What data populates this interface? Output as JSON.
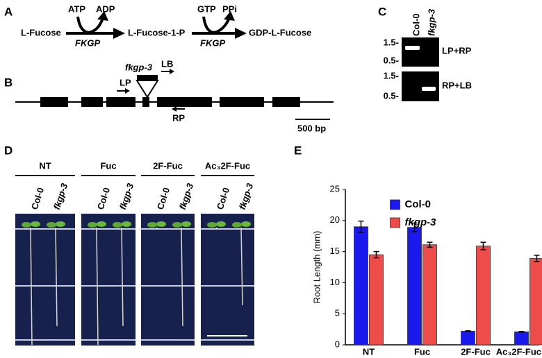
{
  "panel_a": {
    "label": "A",
    "substrate": "L-Fucose",
    "intermediate": "L-Fucose-1-P",
    "product": "GDP-L-Fucose",
    "step1": {
      "input": "ATP",
      "output": "ADP",
      "enzyme": "FKGP"
    },
    "step2": {
      "input": "GTP",
      "output": "PPi",
      "enzyme": "FKGP"
    }
  },
  "panel_b": {
    "label": "B",
    "allele": "fkgp-3",
    "primers": [
      "LB",
      "LP",
      "RP"
    ],
    "scale_bar": "500 bp"
  },
  "panel_c": {
    "label": "C",
    "lanes": [
      "Col-0",
      "fkgp-3"
    ],
    "gels": [
      {
        "markers": [
          "1.5-",
          "0.5-"
        ],
        "primers": "LP+RP"
      },
      {
        "markers": [
          "1.5-",
          "0.5-"
        ],
        "primers": "RP+LB"
      }
    ]
  },
  "panel_d": {
    "label": "D",
    "treatments": [
      {
        "name": "NT",
        "genotypes": [
          "Col-0",
          "fkgp-3"
        ]
      },
      {
        "name": "Fuc",
        "genotypes": [
          "Col-0",
          "fkgp-3"
        ]
      },
      {
        "name": "2F-Fuc",
        "genotypes": [
          "Col-0",
          "fkgp-3"
        ]
      },
      {
        "name": "Ac₃2F-Fuc",
        "genotypes": [
          "Col-0",
          "fkgp-3"
        ]
      }
    ]
  },
  "panel_e_label": "E",
  "chart_data": {
    "type": "bar",
    "ylabel": "Root Length (mm)",
    "categories": [
      "NT",
      "Fuc",
      "2F-Fuc",
      "Ac₃2F-Fuc"
    ],
    "series": [
      {
        "name": "Col-0",
        "color": "#1a1aee",
        "values": [
          19,
          18.9,
          2.2,
          2.1
        ],
        "errors": [
          0.9,
          0.7,
          0.05,
          0.05
        ]
      },
      {
        "name": "fkgp-3",
        "color": "#ee4b4b",
        "values": [
          14.5,
          16.1,
          15.9,
          13.9
        ],
        "errors": [
          0.5,
          0.4,
          0.6,
          0.5
        ]
      }
    ],
    "ylim": [
      0,
      25
    ],
    "yticks": [
      0,
      5,
      10,
      15,
      20,
      25
    ],
    "grid": false,
    "legend": "upper center"
  }
}
